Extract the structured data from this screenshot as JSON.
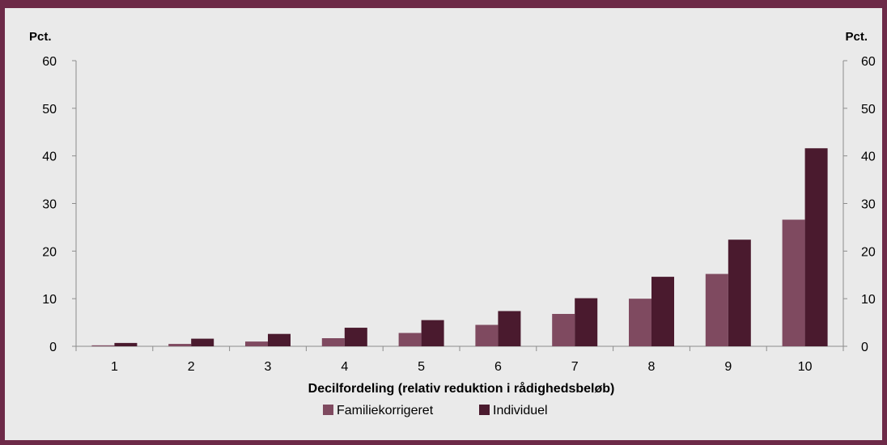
{
  "chart_data": {
    "type": "bar",
    "categories": [
      "1",
      "2",
      "3",
      "4",
      "5",
      "6",
      "7",
      "8",
      "9",
      "10"
    ],
    "series": [
      {
        "name": "Familiekorrigeret",
        "color": "#7f4a60",
        "values": [
          0.2,
          0.5,
          1.0,
          1.7,
          2.8,
          4.5,
          6.8,
          10.0,
          15.2,
          26.6
        ]
      },
      {
        "name": "Individuel",
        "color": "#4a1a2e",
        "values": [
          0.7,
          1.6,
          2.6,
          3.9,
          5.5,
          7.4,
          10.1,
          14.6,
          22.4,
          41.6
        ]
      }
    ],
    "ylim": [
      0,
      60
    ],
    "yticks": [
      0,
      10,
      20,
      30,
      40,
      50,
      60
    ],
    "ylabel_left": "Pct.",
    "ylabel_right": "Pct.",
    "xlabel": "Decilfordeling (relativ reduktion i rådighedsbeløb)",
    "legend_position": "bottom-center",
    "grid": false
  }
}
